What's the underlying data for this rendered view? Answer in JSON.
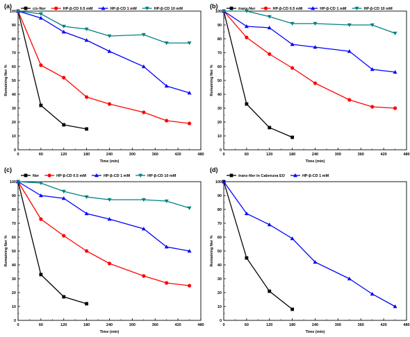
{
  "colors": {
    "black": "#000000",
    "red": "#ff0000",
    "blue": "#0000ff",
    "teal": "#008080"
  },
  "chart_data": [
    {
      "panel": "(a)",
      "type": "line",
      "xlabel": "Time (min)",
      "ylabel": "Remaining Ner %",
      "xlim": [
        0,
        480
      ],
      "ylim": [
        0,
        100
      ],
      "xticks": [
        0,
        60,
        120,
        180,
        240,
        300,
        360,
        420,
        480
      ],
      "yticks": [
        0,
        10,
        20,
        30,
        40,
        50,
        60,
        70,
        80,
        90,
        100
      ],
      "legend_position": "top",
      "series": [
        {
          "name": "cis-Ner",
          "name_prefix": "cis",
          "name_suffix": "-Ner",
          "color": "#000000",
          "marker": "square",
          "x": [
            0,
            60,
            120,
            180
          ],
          "y": [
            100,
            32,
            18,
            15
          ]
        },
        {
          "name": "HP-β-CD 0.5 mM",
          "color": "#ff0000",
          "marker": "circle",
          "x": [
            0,
            60,
            120,
            180,
            240,
            330,
            390,
            450
          ],
          "y": [
            100,
            61,
            52,
            38,
            33,
            27,
            21,
            19
          ]
        },
        {
          "name": "HP-β-CD 1 mM",
          "color": "#0000ff",
          "marker": "triangle-up",
          "x": [
            0,
            60,
            120,
            180,
            240,
            330,
            390,
            450
          ],
          "y": [
            100,
            95,
            85,
            79,
            71,
            60,
            46,
            41
          ]
        },
        {
          "name": "HP-β-CD 10 mM",
          "color": "#008080",
          "marker": "triangle-down",
          "x": [
            0,
            60,
            120,
            180,
            240,
            330,
            390,
            450
          ],
          "y": [
            100,
            98,
            89,
            87,
            82,
            83,
            77,
            77
          ]
        }
      ]
    },
    {
      "panel": "(b)",
      "type": "line",
      "xlabel": "Time (min)",
      "ylabel": "Remaining Ner %",
      "xlim": [
        0,
        480
      ],
      "ylim": [
        0,
        100
      ],
      "xticks": [
        0,
        60,
        120,
        180,
        240,
        300,
        360,
        420,
        480
      ],
      "yticks": [
        0,
        10,
        20,
        30,
        40,
        50,
        60,
        70,
        80,
        90,
        100
      ],
      "legend_position": "top",
      "series": [
        {
          "name": "trans-Ner",
          "name_prefix": "trans",
          "name_suffix": "-Ner",
          "color": "#000000",
          "marker": "square",
          "x": [
            0,
            60,
            120,
            180
          ],
          "y": [
            100,
            33,
            16,
            9
          ]
        },
        {
          "name": "HP-β-CD 0.5 mM",
          "color": "#ff0000",
          "marker": "circle",
          "x": [
            0,
            60,
            120,
            180,
            240,
            330,
            390,
            450
          ],
          "y": [
            100,
            81,
            69,
            59,
            48,
            36,
            31,
            30
          ]
        },
        {
          "name": "HP-β-CD 1 mM",
          "color": "#0000ff",
          "marker": "triangle-up",
          "x": [
            0,
            60,
            120,
            180,
            240,
            330,
            390,
            450
          ],
          "y": [
            100,
            89,
            88,
            76,
            74,
            71,
            58,
            56
          ]
        },
        {
          "name": "HP-β-CD 10 mM",
          "color": "#008080",
          "marker": "triangle-down",
          "x": [
            0,
            60,
            120,
            180,
            240,
            330,
            390,
            450
          ],
          "y": [
            100,
            100,
            96,
            91,
            91,
            90,
            90,
            84
          ]
        }
      ]
    },
    {
      "panel": "(c)",
      "type": "line",
      "xlabel": "Time (min)",
      "ylabel": "Remaining Ner %",
      "xlim": [
        0,
        480
      ],
      "ylim": [
        0,
        100
      ],
      "xticks": [
        0,
        60,
        120,
        180,
        240,
        300,
        360,
        420,
        480
      ],
      "yticks": [
        0,
        10,
        20,
        30,
        40,
        50,
        60,
        70,
        80,
        90,
        100
      ],
      "legend_position": "top",
      "series": [
        {
          "name": "Ner",
          "color": "#000000",
          "marker": "square",
          "x": [
            0,
            60,
            120,
            180
          ],
          "y": [
            100,
            33,
            17,
            12
          ]
        },
        {
          "name": "HP-β-CD 0.5 mM",
          "color": "#ff0000",
          "marker": "circle",
          "x": [
            0,
            60,
            120,
            180,
            240,
            330,
            390,
            450
          ],
          "y": [
            100,
            73,
            61,
            50,
            41,
            32,
            27,
            25
          ]
        },
        {
          "name": "HP-β-CD 1 mM",
          "color": "#0000ff",
          "marker": "triangle-up",
          "x": [
            0,
            60,
            120,
            180,
            240,
            330,
            390,
            450
          ],
          "y": [
            100,
            90,
            88,
            77,
            73,
            66,
            53,
            50
          ]
        },
        {
          "name": "HP-β-CD 10 mM",
          "color": "#008080",
          "marker": "triangle-down",
          "x": [
            0,
            60,
            120,
            180,
            240,
            330,
            390,
            450
          ],
          "y": [
            100,
            99,
            93,
            89,
            87,
            87,
            86,
            81
          ]
        }
      ]
    },
    {
      "panel": "(d)",
      "type": "line",
      "xlabel": "Time (min)",
      "ylabel": "Remaining Ner %",
      "xlim": [
        0,
        480
      ],
      "ylim": [
        0,
        100
      ],
      "xticks": [
        0,
        60,
        120,
        180,
        240,
        300,
        360,
        420,
        480
      ],
      "yticks": [
        0,
        10,
        20,
        30,
        40,
        50,
        60,
        70,
        80,
        90,
        100
      ],
      "legend_position": "top",
      "series": [
        {
          "name": "trans-Ner in Cabreuva EO",
          "name_prefix": "trans",
          "name_suffix": "-Ner in Cabreuva EO",
          "color": "#000000",
          "marker": "square",
          "x": [
            0,
            60,
            120,
            180
          ],
          "y": [
            100,
            45,
            21,
            8
          ]
        },
        {
          "name": "HP-β-CD 1 mM",
          "color": "#0000ff",
          "marker": "triangle-up",
          "x": [
            0,
            60,
            120,
            180,
            240,
            330,
            390,
            450
          ],
          "y": [
            100,
            77,
            69,
            59,
            42,
            30,
            19,
            10
          ]
        }
      ]
    }
  ]
}
